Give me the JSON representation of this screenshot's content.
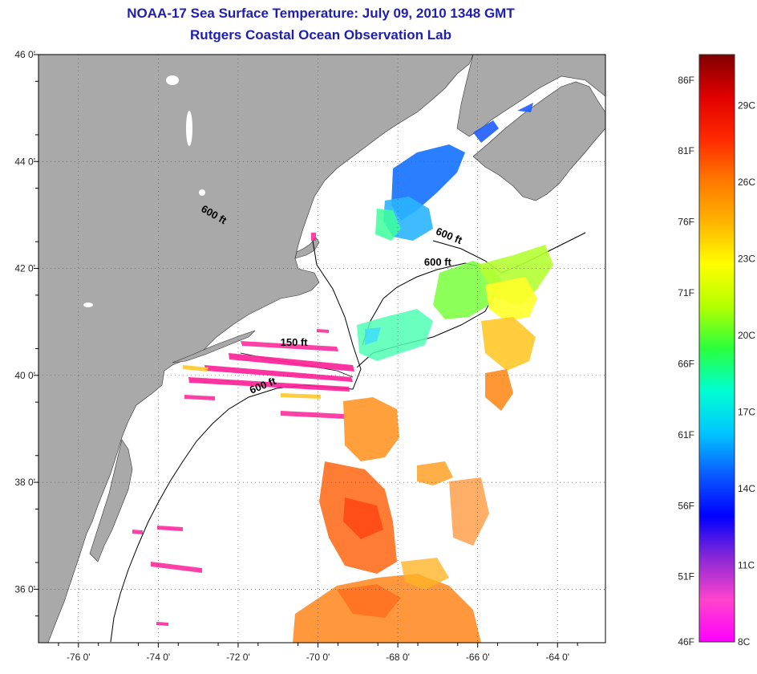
{
  "header": {
    "title": "NOAA-17 Sea Surface Temperature:  July 09, 2010 1348 GMT",
    "subtitle": "Rutgers Coastal Ocean Observation Lab"
  },
  "map": {
    "lon_range": [
      -77.0,
      -62.8
    ],
    "lat_range": [
      35.0,
      46.0
    ],
    "lon_ticks": [
      {
        "value": -76,
        "label": "-76 0'"
      },
      {
        "value": -74,
        "label": "-74 0'"
      },
      {
        "value": -72,
        "label": "-72 0'"
      },
      {
        "value": -70,
        "label": "-70 0'"
      },
      {
        "value": -68,
        "label": "-68 0'"
      },
      {
        "value": -66,
        "label": "-66 0'"
      },
      {
        "value": -64,
        "label": "-64 0'"
      }
    ],
    "lat_ticks": [
      {
        "value": 46,
        "label": "46 0'"
      },
      {
        "value": 44,
        "label": "44 0'"
      },
      {
        "value": 42,
        "label": "42 0'"
      },
      {
        "value": 40,
        "label": "40 0'"
      },
      {
        "value": 38,
        "label": "38 0'"
      },
      {
        "value": 36,
        "label": "36 0'"
      }
    ],
    "contour_labels": [
      {
        "text": "600 ft",
        "lon": -72.65,
        "lat": 42.95,
        "angle": 30
      },
      {
        "text": "600 ft",
        "lon": -66.75,
        "lat": 42.55,
        "angle": 22
      },
      {
        "text": "600 ft",
        "lon": -67.0,
        "lat": 42.05,
        "angle": 0
      },
      {
        "text": "150 ft",
        "lon": -70.6,
        "lat": 40.55,
        "angle": 0
      },
      {
        "text": "600 ft",
        "lon": -71.35,
        "lat": 39.75,
        "angle": -22
      }
    ],
    "colors": {
      "land": "#a9a9a9",
      "ocean": "#ffffff",
      "contour": "#000000",
      "title": "#1e1eb4"
    }
  },
  "colorbar": {
    "range_c": [
      8,
      31
    ],
    "stops": [
      "#ff00ff",
      "#ff44cc",
      "#8a28d6",
      "#0000ff",
      "#0a5cff",
      "#00c8ff",
      "#00ffd0",
      "#2aff3c",
      "#b4ff00",
      "#ffff00",
      "#ffb400",
      "#ff7800",
      "#ff2800",
      "#e00000",
      "#800000"
    ],
    "f_labels": [
      {
        "value": 86,
        "label": "86F"
      },
      {
        "value": 81,
        "label": "81F"
      },
      {
        "value": 76,
        "label": "76F"
      },
      {
        "value": 71,
        "label": "71F"
      },
      {
        "value": 66,
        "label": "66F"
      },
      {
        "value": 61,
        "label": "61F"
      },
      {
        "value": 56,
        "label": "56F"
      },
      {
        "value": 51,
        "label": "51F"
      },
      {
        "value": 46,
        "label": "46F"
      }
    ],
    "c_labels": [
      {
        "value": 29,
        "label": "29C"
      },
      {
        "value": 26,
        "label": "26C"
      },
      {
        "value": 23,
        "label": "23C"
      },
      {
        "value": 20,
        "label": "20C"
      },
      {
        "value": 17,
        "label": "17C"
      },
      {
        "value": 14,
        "label": "14C"
      },
      {
        "value": 11,
        "label": "11C"
      },
      {
        "value": 8,
        "label": "8C"
      }
    ]
  }
}
